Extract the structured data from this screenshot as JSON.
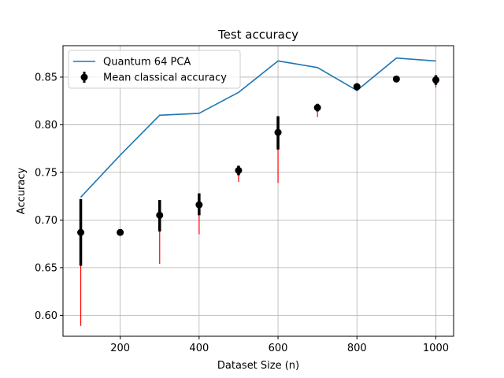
{
  "chart_data": {
    "type": "line",
    "title": "Test accuracy",
    "xlabel": "Dataset Size (n)",
    "ylabel": "Accuracy",
    "xlim": [
      55,
      1045
    ],
    "ylim": [
      0.578,
      0.883
    ],
    "xticks": [
      200,
      400,
      600,
      800,
      1000
    ],
    "yticks": [
      0.6,
      0.65,
      0.7,
      0.75,
      0.8,
      0.85
    ],
    "xtick_labels": [
      "200",
      "400",
      "600",
      "800",
      "1000"
    ],
    "ytick_labels": [
      "0.60",
      "0.65",
      "0.70",
      "0.75",
      "0.80",
      "0.85"
    ],
    "grid": true,
    "legend_position": "top-left",
    "colors": {
      "quantum_line": "#1f77b4",
      "classical_marker": "#000000",
      "thick_error": "#000000",
      "thin_error": "#ff0000",
      "grid": "#b0b0b0"
    },
    "series": [
      {
        "name": "Quantum 64 PCA",
        "kind": "line",
        "x": [
          100,
          200,
          300,
          400,
          500,
          600,
          700,
          800,
          900,
          1000
        ],
        "y": [
          0.724,
          0.768,
          0.81,
          0.812,
          0.834,
          0.867,
          0.86,
          0.836,
          0.87,
          0.867
        ]
      },
      {
        "name": "Mean classical accuracy",
        "kind": "errorbar",
        "x": [
          100,
          200,
          300,
          400,
          500,
          600,
          700,
          800,
          900,
          1000
        ],
        "y": [
          0.687,
          0.687,
          0.705,
          0.716,
          0.752,
          0.792,
          0.818,
          0.84,
          0.848,
          0.847
        ],
        "thick_low": [
          0.652,
          0.687,
          0.688,
          0.705,
          0.747,
          0.774,
          0.814,
          0.836,
          0.846,
          0.842
        ],
        "thick_high": [
          0.722,
          0.687,
          0.721,
          0.728,
          0.757,
          0.809,
          0.822,
          0.843,
          0.85,
          0.852
        ],
        "thin_low": [
          0.589,
          0.687,
          0.654,
          0.685,
          0.74,
          0.739,
          0.808,
          0.836,
          0.846,
          0.839
        ],
        "thin_high": [
          0.722,
          0.687,
          0.721,
          0.728,
          0.757,
          0.809,
          0.822,
          0.843,
          0.85,
          0.852
        ]
      }
    ]
  }
}
